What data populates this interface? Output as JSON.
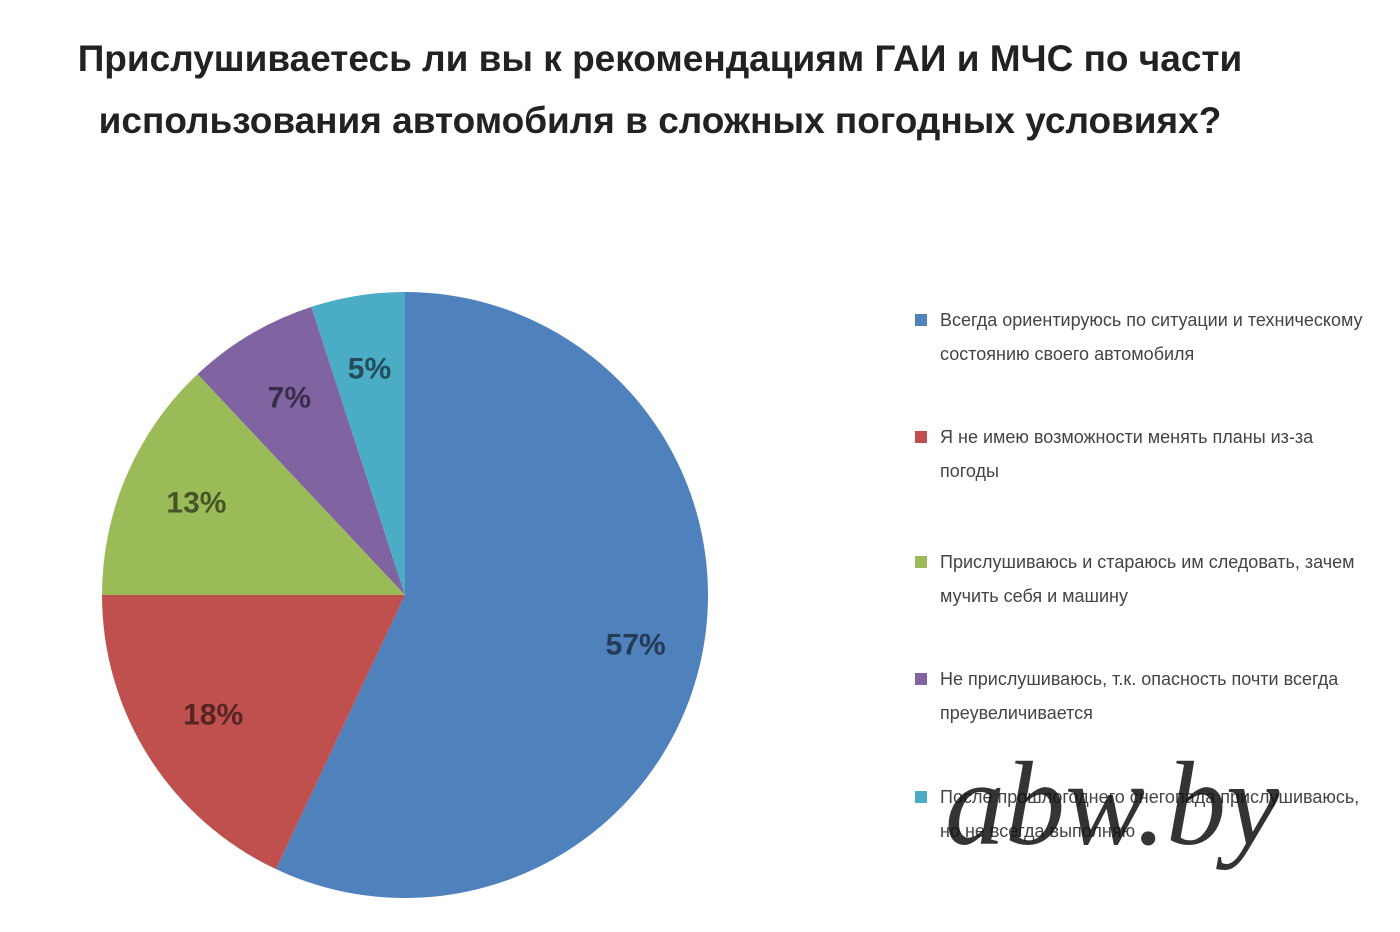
{
  "chart_data": {
    "type": "pie",
    "title": "Прислушиваетесь ли вы к рекомендациям ГАИ и МЧС по части использования автомобиля в сложных погодных условиях?",
    "categories": [
      "Всегда ориентируюсь по ситуации и техническому состоянию своего автомобиля",
      "Я не имею возможности менять планы из-за погоды",
      "Прислушиваюсь и стараюсь им следовать, зачем мучить себя и машину",
      "Не прислушиваюсь, т.к. опасность почти всегда преувеличивается",
      "После прошлогоднего снегопада прислушиваюсь, но не всегда выполняю"
    ],
    "values": [
      57,
      18,
      13,
      7,
      5
    ],
    "value_labels": [
      "57%",
      "18%",
      "13%",
      "7%",
      "5%"
    ],
    "colors": [
      "#4f81bd",
      "#c0504d",
      "#9bbb59",
      "#8064a2",
      "#4bacc6"
    ],
    "legend": "right"
  },
  "watermark": "abw.by"
}
